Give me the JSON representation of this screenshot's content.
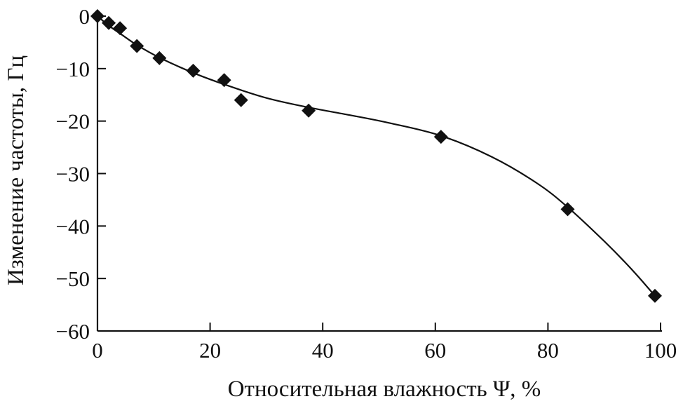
{
  "chart_data": {
    "type": "scatter",
    "title": "",
    "xlabel": "Относительная влажность Ψ, %",
    "ylabel": "Изменение частоты, Гц",
    "xlim": [
      0,
      100
    ],
    "ylim": [
      -60,
      0
    ],
    "x_ticks": [
      0,
      20,
      40,
      60,
      80,
      100
    ],
    "y_ticks": [
      0,
      -10,
      -20,
      -30,
      -40,
      -50,
      -60
    ],
    "x_tick_labels": [
      "0",
      "20",
      "40",
      "60",
      "80",
      "100"
    ],
    "y_tick_labels": [
      "0",
      "−10",
      "−20",
      "−30",
      "−40",
      "−50",
      "−60"
    ],
    "grid": false,
    "legend": "none",
    "series": [
      {
        "marker": "diamond",
        "color": "#111111",
        "x": [
          0,
          2,
          4,
          7,
          11,
          17,
          22.5,
          25.5,
          37.5,
          61,
          83.5,
          99
        ],
        "y": [
          0,
          -1.3,
          -2.3,
          -5.7,
          -8,
          -10.4,
          -12.2,
          -16,
          -18,
          -23,
          -36.8,
          -53.3
        ]
      }
    ],
    "fit_curve": {
      "color": "#111111",
      "x": [
        0,
        2,
        4,
        7,
        11,
        17,
        22.5,
        30,
        37.5,
        45,
        52,
        61,
        70,
        78,
        83.5,
        90,
        95,
        99
      ],
      "y": [
        0,
        -1.8,
        -3.3,
        -5.5,
        -7.9,
        -10.8,
        -13.0,
        -15.6,
        -17.4,
        -18.9,
        -20.4,
        -22.8,
        -26.8,
        -31.8,
        -36.4,
        -42.9,
        -48.4,
        -53.3
      ]
    }
  }
}
